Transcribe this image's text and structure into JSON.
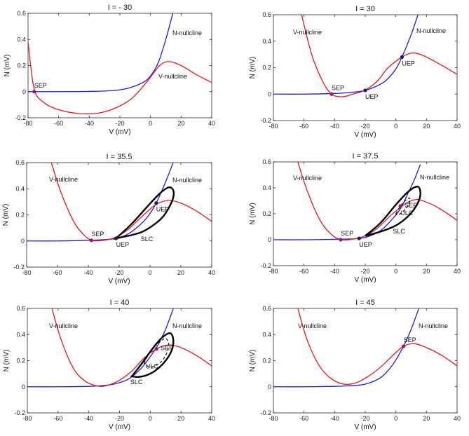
{
  "chart_data": [
    {
      "type": "line",
      "title": "I = - 30",
      "xlabel": "V (mV)",
      "ylabel": "N (mV)",
      "xlim": [
        -80,
        40
      ],
      "ylim": [
        -0.2,
        0.6
      ],
      "xticks": [
        "-80",
        "-60",
        "-40",
        "-20",
        "0",
        "20",
        "40"
      ],
      "yticks": [
        "-0.2",
        "0",
        "0.2",
        "0.4",
        "0.6"
      ],
      "curve_labels": {
        "n": "N-nullcline",
        "v": "V-nullcline"
      },
      "series": [
        {
          "name": "N-nullcline",
          "color": "#1a1ae6",
          "x": [
            -80,
            -60,
            -40,
            -25,
            -15,
            -5,
            0,
            5,
            10,
            15
          ],
          "y": [
            0,
            0,
            0.002,
            0.008,
            0.025,
            0.07,
            0.12,
            0.22,
            0.4,
            0.62
          ]
        },
        {
          "name": "V-nullcline",
          "color": "#e61a1a",
          "x": [
            -80,
            -76,
            -70,
            -62,
            -52,
            -42,
            -32,
            -22,
            -12,
            -2,
            6,
            12,
            20,
            30,
            40
          ],
          "y": [
            0.38,
            0.02,
            -0.08,
            -0.13,
            -0.16,
            -0.17,
            -0.16,
            -0.12,
            -0.05,
            0.08,
            0.2,
            0.23,
            0.2,
            0.13,
            0.07
          ]
        }
      ],
      "points": [
        {
          "label": "SEP",
          "x": -76,
          "y": 0.0,
          "color": "#a0185a"
        }
      ],
      "cycles": []
    },
    {
      "type": "line",
      "title": "I = 30",
      "xlabel": "V (mV)",
      "ylabel": "N (mV)",
      "xlim": [
        -80,
        40
      ],
      "ylim": [
        -0.2,
        0.6
      ],
      "xticks": [
        "-80",
        "-60",
        "-40",
        "-20",
        "0",
        "20",
        "40"
      ],
      "yticks": [
        "-0.2",
        "0",
        "0.2",
        "0.4",
        "0.6"
      ],
      "curve_labels": {
        "n": "N-nullcline",
        "v": "V-nullcline"
      },
      "series": [
        {
          "name": "N-nullcline",
          "color": "#1a1ae6",
          "x": [
            -80,
            -60,
            -40,
            -30,
            -20,
            -10,
            -5,
            0,
            4,
            10,
            15
          ],
          "y": [
            0,
            0,
            0.005,
            0.012,
            0.028,
            0.075,
            0.12,
            0.19,
            0.28,
            0.45,
            0.62
          ]
        },
        {
          "name": "V-nullcline",
          "color": "#e61a1a",
          "x": [
            -62,
            -55,
            -48,
            -42,
            -35,
            -28,
            -20,
            -12,
            -5,
            4,
            10,
            16,
            25,
            40
          ],
          "y": [
            0.62,
            0.3,
            0.1,
            0.0,
            -0.02,
            0.0,
            0.03,
            0.1,
            0.2,
            0.28,
            0.31,
            0.3,
            0.25,
            0.15
          ]
        }
      ],
      "points": [
        {
          "label": "SEP",
          "x": -42,
          "y": 0.0,
          "color": "#a0185a"
        },
        {
          "label": "UEP",
          "x": -20,
          "y": 0.028,
          "color": "#1e1e5a"
        },
        {
          "label": "UEP",
          "x": 4,
          "y": 0.28,
          "color": "#1e1e5a"
        }
      ],
      "cycles": []
    },
    {
      "type": "line",
      "title": "I = 35.5",
      "xlabel": "V (mV)",
      "ylabel": "N (mV)",
      "xlim": [
        -80,
        40
      ],
      "ylim": [
        -0.2,
        0.6
      ],
      "xticks": [
        "-80",
        "-60",
        "-40",
        "-20",
        "0",
        "20",
        "40"
      ],
      "yticks": [
        "-0.2",
        "0",
        "0.2",
        "0.4",
        "0.6"
      ],
      "curve_labels": {
        "n": "N-nullcline",
        "v": "V-nullcline"
      },
      "series": [
        {
          "name": "N-nullcline",
          "color": "#1a1ae6",
          "x": [
            -80,
            -60,
            -40,
            -30,
            -22,
            -14,
            -5,
            0,
            4,
            10,
            15
          ],
          "y": [
            0,
            0,
            0.005,
            0.01,
            0.02,
            0.055,
            0.14,
            0.21,
            0.29,
            0.45,
            0.6
          ]
        },
        {
          "name": "V-nullcline",
          "color": "#e61a1a",
          "x": [
            -64,
            -58,
            -50,
            -44,
            -38,
            -30,
            -22,
            -14,
            -5,
            4,
            12,
            20,
            30,
            40
          ],
          "y": [
            0.6,
            0.38,
            0.16,
            0.06,
            0.005,
            0.005,
            0.03,
            0.09,
            0.19,
            0.28,
            0.31,
            0.29,
            0.23,
            0.15
          ]
        }
      ],
      "points": [
        {
          "label": "SEP",
          "x": -38,
          "y": 0.005,
          "color": "#a0185a"
        },
        {
          "label": "UEP",
          "x": -22,
          "y": 0.02,
          "color": "#1e1e5a"
        },
        {
          "label": "UEP",
          "x": 4,
          "y": 0.29,
          "color": "#1e1e5a"
        }
      ],
      "cycles": [
        {
          "label": "SLC",
          "style": "solid",
          "color": "#000000",
          "x": [
            -22,
            -12,
            -2,
            6,
            12,
            15,
            15,
            12,
            8,
            2,
            -5,
            -12,
            -18,
            -22
          ],
          "y": [
            0.02,
            0.13,
            0.26,
            0.36,
            0.41,
            0.39,
            0.33,
            0.25,
            0.18,
            0.12,
            0.07,
            0.045,
            0.03,
            0.02
          ]
        }
      ]
    },
    {
      "type": "line",
      "title": "I = 37.5",
      "xlabel": "V (mV)",
      "ylabel": "N (mV)",
      "xlim": [
        -80,
        40
      ],
      "ylim": [
        -0.2,
        0.6
      ],
      "xticks": [
        "-80",
        "-60",
        "-40",
        "-20",
        "0",
        "20",
        "40"
      ],
      "yticks": [
        "-0.2",
        "0",
        "0.2",
        "0.4",
        "0.6"
      ],
      "curve_labels": {
        "n": "N-nullcline",
        "v": "V-nullcline"
      },
      "series": [
        {
          "name": "N-nullcline",
          "color": "#1a1ae6",
          "x": [
            -80,
            -60,
            -40,
            -30,
            -24,
            -18,
            -10,
            -3,
            3,
            8,
            12,
            16
          ],
          "y": [
            0,
            0,
            0.003,
            0.006,
            0.01,
            0.025,
            0.07,
            0.15,
            0.24,
            0.36,
            0.46,
            0.58
          ]
        },
        {
          "name": "V-nullcline",
          "color": "#e61a1a",
          "x": [
            -64,
            -58,
            -50,
            -43,
            -36,
            -28,
            -20,
            -12,
            -4,
            2,
            8,
            14,
            22,
            30,
            40
          ],
          "y": [
            0.6,
            0.38,
            0.16,
            0.05,
            0.0,
            0.005,
            0.03,
            0.09,
            0.18,
            0.24,
            0.29,
            0.31,
            0.28,
            0.23,
            0.15
          ]
        }
      ],
      "points": [
        {
          "label": "SEP",
          "x": -36,
          "y": 0.0,
          "color": "#a0185a"
        },
        {
          "label": "UEP",
          "x": -24,
          "y": 0.01,
          "color": "#1e1e5a"
        },
        {
          "label": "",
          "x": 3,
          "y": 0.26,
          "color": "#a0185a"
        }
      ],
      "cycles": [
        {
          "label": "SLC",
          "style": "solid",
          "color": "#000000",
          "x": [
            -20,
            -10,
            0,
            8,
            14,
            16,
            15,
            11,
            6,
            0,
            -8,
            -15,
            -20
          ],
          "y": [
            0.03,
            0.13,
            0.27,
            0.37,
            0.41,
            0.37,
            0.3,
            0.22,
            0.16,
            0.11,
            0.07,
            0.045,
            0.03
          ]
        },
        {
          "label": "ULC",
          "style": "dashed",
          "color": "#000000",
          "x": [
            0,
            3,
            7,
            9,
            9,
            7,
            4,
            1,
            0
          ],
          "y": [
            0.2,
            0.26,
            0.31,
            0.32,
            0.29,
            0.25,
            0.21,
            0.19,
            0.2
          ]
        }
      ]
    },
    {
      "type": "line",
      "title": "I = 40",
      "xlabel": "V (mV)",
      "ylabel": "N (mV)",
      "xlim": [
        -80,
        40
      ],
      "ylim": [
        -0.2,
        0.6
      ],
      "xticks": [
        "-80",
        "-60",
        "-40",
        "-20",
        "0",
        "20",
        "40"
      ],
      "yticks": [
        "-0.2",
        "0",
        "0.2",
        "0.4",
        "0.6"
      ],
      "curve_labels": {
        "n": "N-nullcline",
        "v": "V-nullcline"
      },
      "series": [
        {
          "name": "N-nullcline",
          "color": "#1a1ae6",
          "x": [
            -80,
            -60,
            -40,
            -30,
            -22,
            -14,
            -6,
            0,
            5,
            10,
            15
          ],
          "y": [
            0,
            0,
            0.003,
            0.01,
            0.025,
            0.06,
            0.14,
            0.23,
            0.32,
            0.44,
            0.6
          ]
        },
        {
          "name": "V-nullcline",
          "color": "#e61a1a",
          "x": [
            -64,
            -58,
            -50,
            -42,
            -34,
            -28,
            -20,
            -12,
            -4,
            4,
            12,
            20,
            30,
            40
          ],
          "y": [
            0.6,
            0.36,
            0.14,
            0.04,
            0.005,
            0.01,
            0.05,
            0.12,
            0.22,
            0.29,
            0.32,
            0.3,
            0.24,
            0.16
          ]
        }
      ],
      "points": [
        {
          "label": "",
          "x": 4,
          "y": 0.29,
          "color": "#a0185a"
        }
      ],
      "cycles": [
        {
          "label": "SLC",
          "style": "solid",
          "color": "#000000",
          "x": [
            -12,
            -6,
            2,
            8,
            13,
            15,
            14,
            10,
            4,
            -2,
            -8,
            -12
          ],
          "y": [
            0.08,
            0.17,
            0.3,
            0.38,
            0.41,
            0.36,
            0.28,
            0.2,
            0.13,
            0.09,
            0.075,
            0.08
          ]
        },
        {
          "label": "ULC",
          "style": "dashed",
          "color": "#000000",
          "x": [
            -4,
            0,
            6,
            10,
            12,
            10,
            6,
            0,
            -4
          ],
          "y": [
            0.18,
            0.27,
            0.34,
            0.37,
            0.32,
            0.24,
            0.18,
            0.15,
            0.18
          ]
        }
      ]
    },
    {
      "type": "line",
      "title": "I = 45",
      "xlabel": "V (mV)",
      "ylabel": "N (mV)",
      "xlim": [
        -80,
        40
      ],
      "ylim": [
        -0.2,
        0.6
      ],
      "xticks": [
        "-80",
        "-60",
        "-40",
        "-20",
        "0",
        "20",
        "40"
      ],
      "yticks": [
        "-0.2",
        "0",
        "0.2",
        "0.4",
        "0.6"
      ],
      "curve_labels": {
        "n": "N-nullcline",
        "v": "V-nullcline"
      },
      "series": [
        {
          "name": "N-nullcline",
          "color": "#1a1ae6",
          "x": [
            -80,
            -60,
            -40,
            -30,
            -20,
            -10,
            -2,
            5,
            10,
            15
          ],
          "y": [
            0,
            0,
            0.003,
            0.008,
            0.02,
            0.07,
            0.17,
            0.31,
            0.44,
            0.6
          ]
        },
        {
          "name": "V-nullcline",
          "color": "#e61a1a",
          "x": [
            -64,
            -58,
            -50,
            -42,
            -34,
            -26,
            -18,
            -10,
            -2,
            5,
            12,
            20,
            30,
            40
          ],
          "y": [
            0.6,
            0.36,
            0.16,
            0.06,
            0.02,
            0.03,
            0.08,
            0.15,
            0.24,
            0.31,
            0.33,
            0.3,
            0.24,
            0.16
          ]
        }
      ],
      "points": [
        {
          "label": "SEP",
          "x": 5,
          "y": 0.31,
          "color": "#a0185a"
        }
      ],
      "cycles": []
    }
  ]
}
